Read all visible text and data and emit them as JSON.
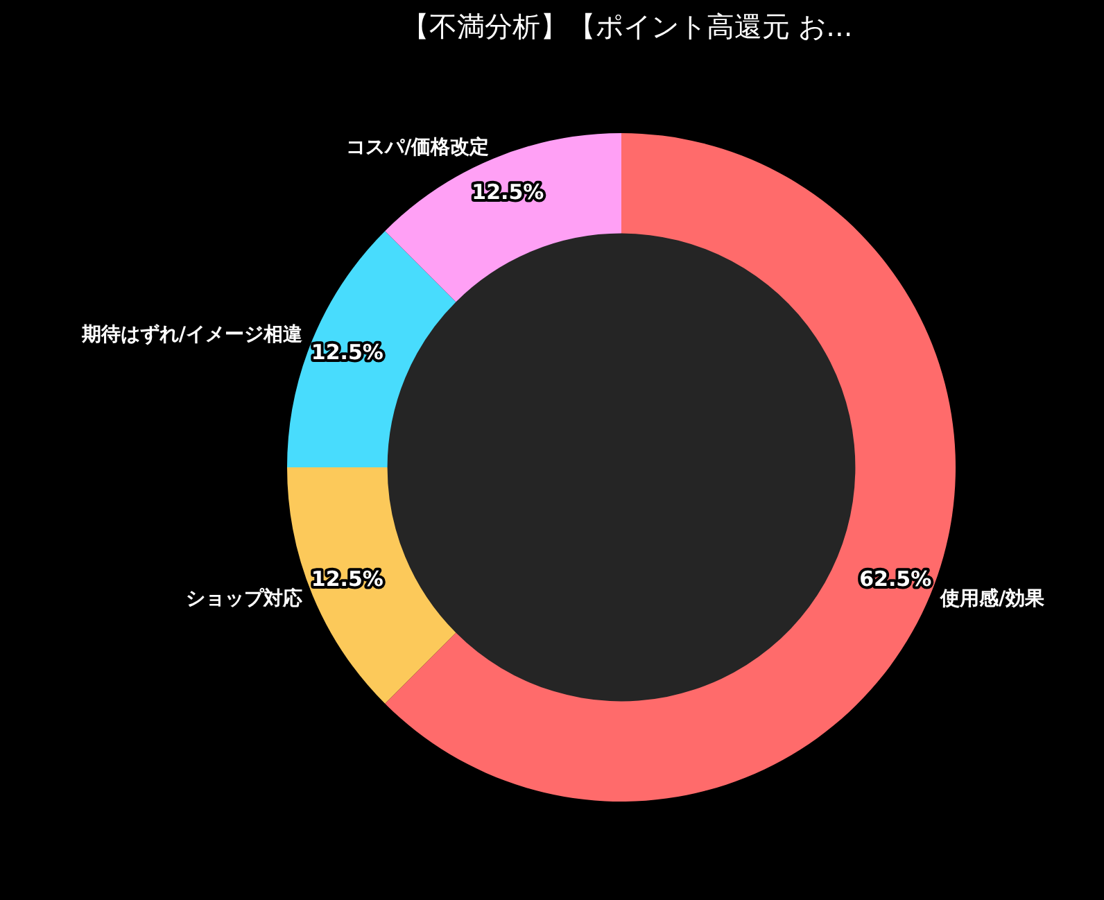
{
  "chart_data": {
    "type": "donut",
    "title": "【不満分析】【ポイント高還元 お...",
    "categories": [
      "使用感/効果",
      "ショップ対応",
      "期待はずれ/イメージ相違",
      "コスパ/価格改定"
    ],
    "values": [
      62.5,
      12.5,
      12.5,
      12.5
    ],
    "colors": [
      "#ff6b6b",
      "#fcc95a",
      "#48dcfd",
      "#ffa0f5"
    ],
    "value_labels": [
      "62.5%",
      "12.5%",
      "12.5%",
      "12.5%"
    ],
    "legend": false
  }
}
